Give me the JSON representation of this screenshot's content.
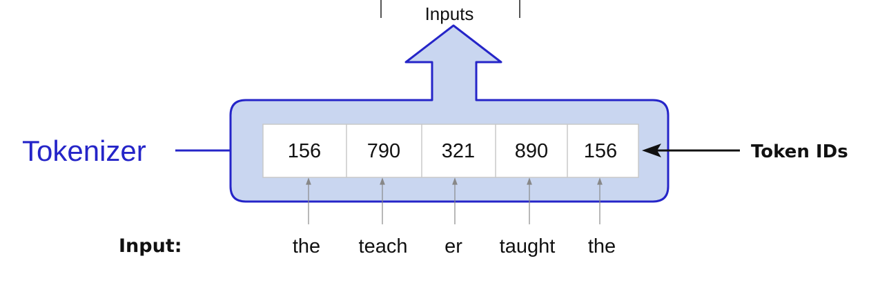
{
  "top_label": "Inputs",
  "tokenizer_label": "Tokenizer",
  "token_ids_label": "Token IDs",
  "input_label": "Input:",
  "token_ids": [
    "156",
    "790",
    "321",
    "890",
    "156"
  ],
  "input_tokens": [
    "the",
    "teach",
    "er",
    "taught",
    "the"
  ],
  "colors": {
    "tokenizer_blue": "#2525c8",
    "tokenizer_fill": "#c9d6f0",
    "cell_border": "#c8c8c8",
    "text": "#111111"
  }
}
